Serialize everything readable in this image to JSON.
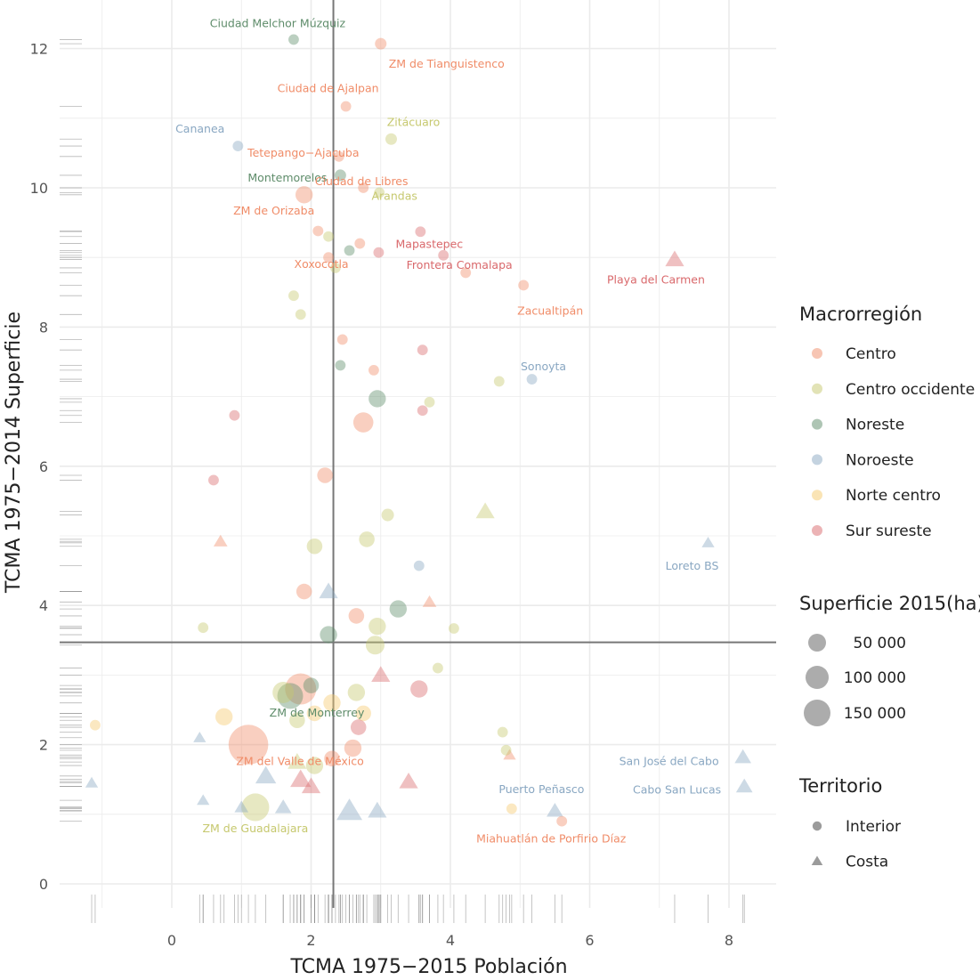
{
  "chart_data": {
    "type": "scatter",
    "xlabel": "TCMA 1975−2015 Población",
    "ylabel": "TCMA 1975−2014 Superficie",
    "xlim": [
      -1.6,
      8.7
    ],
    "ylim": [
      -0.15,
      12.45
    ],
    "x_ticks": [
      0,
      2,
      4,
      6,
      8
    ],
    "y_ticks": [
      0,
      2,
      4,
      6,
      8,
      10,
      12
    ],
    "grid": true,
    "reference_lines": {
      "x": 2.32,
      "y": 3.47
    },
    "legend_placement": "right",
    "colors": {
      "Centro": "#f08c68",
      "Centro occidente": "#c6c86e",
      "Noreste": "#5e8c6a",
      "Noroeste": "#89a7c2",
      "Norte centro": "#f5c96b",
      "Sur sureste": "#d9686b"
    },
    "legend_color": {
      "title": "Macrorregión",
      "items": [
        "Centro",
        "Centro occidente",
        "Noreste",
        "Noroeste",
        "Norte centro",
        "Sur sureste"
      ]
    },
    "legend_size": {
      "title": "Superficie 2015(ha)",
      "items": [
        {
          "label": "50 000",
          "value": 50000
        },
        {
          "label": "100 000",
          "value": 100000
        },
        {
          "label": "150 000",
          "value": 150000
        }
      ]
    },
    "legend_shape": {
      "title": "Territorio",
      "items": [
        {
          "label": "Interior",
          "shape": "circle"
        },
        {
          "label": "Costa",
          "shape": "triangle"
        }
      ]
    },
    "labeled_points": [
      {
        "name": "Ciudad Melchor Múzquiz",
        "x": 1.75,
        "y": 12.13,
        "region": "Noreste",
        "territory": "Interior",
        "size": 8000
      },
      {
        "name": "ZM de Tianguistenco",
        "x": 3.0,
        "y": 12.07,
        "region": "Centro",
        "territory": "Interior",
        "size": 10000
      },
      {
        "name": "Ciudad de Ajalpan",
        "x": 2.5,
        "y": 11.17,
        "region": "Centro",
        "territory": "Interior",
        "size": 8000
      },
      {
        "name": "Cananea",
        "x": 0.95,
        "y": 10.6,
        "region": "Noroeste",
        "territory": "Interior",
        "size": 8000
      },
      {
        "name": "Tetepango−Ajacuba",
        "x": 2.4,
        "y": 10.45,
        "region": "Centro",
        "territory": "Interior",
        "size": 8000
      },
      {
        "name": "Zitácuaro",
        "x": 3.15,
        "y": 10.7,
        "region": "Centro occidente",
        "territory": "Interior",
        "size": 10000
      },
      {
        "name": "Montemorelos",
        "x": 2.42,
        "y": 10.18,
        "region": "Noreste",
        "territory": "Interior",
        "size": 10000
      },
      {
        "name": "Arandas",
        "x": 2.98,
        "y": 9.93,
        "region": "Centro occidente",
        "territory": "Interior",
        "size": 8000
      },
      {
        "name": "ZM de Orizaba",
        "x": 1.9,
        "y": 9.9,
        "region": "Centro",
        "territory": "Interior",
        "size": 25000
      },
      {
        "name": "Ciudad de Libres",
        "x": 2.75,
        "y": 10.0,
        "region": "Centro",
        "territory": "Interior",
        "size": 8000
      },
      {
        "name": "Mapastepec",
        "x": 3.57,
        "y": 9.37,
        "region": "Sur sureste",
        "territory": "Interior",
        "size": 8000
      },
      {
        "name": "Xoxocotla",
        "x": 2.25,
        "y": 9.0,
        "region": "Centro",
        "territory": "Interior",
        "size": 8000
      },
      {
        "name": "Frontera Comalapa",
        "x": 3.9,
        "y": 9.03,
        "region": "Sur sureste",
        "territory": "Interior",
        "size": 8000
      },
      {
        "name": "Playa del Carmen",
        "x": 7.22,
        "y": 8.97,
        "region": "Sur sureste",
        "territory": "Costa",
        "size": 20000
      },
      {
        "name": "Zacualtipán",
        "x": 5.05,
        "y": 8.6,
        "region": "Centro",
        "territory": "Interior",
        "size": 8000
      },
      {
        "name": "Sonoyta",
        "x": 5.17,
        "y": 7.25,
        "region": "Noroeste",
        "territory": "Interior",
        "size": 8000
      },
      {
        "name": "Loreto BS",
        "x": 7.7,
        "y": 4.9,
        "region": "Noroeste",
        "territory": "Costa",
        "size": 8000
      },
      {
        "name": "ZM de Monterrey",
        "x": 1.7,
        "y": 2.7,
        "region": "Noreste",
        "territory": "Interior",
        "size": 60000
      },
      {
        "name": "San José del Cabo",
        "x": 8.2,
        "y": 1.82,
        "region": "Noroeste",
        "territory": "Costa",
        "size": 15000
      },
      {
        "name": "ZM del Valle de México",
        "x": 1.1,
        "y": 2.0,
        "region": "Centro",
        "territory": "Interior",
        "size": 150000
      },
      {
        "name": "Cabo San Lucas",
        "x": 8.22,
        "y": 1.4,
        "region": "Noroeste",
        "territory": "Costa",
        "size": 15000
      },
      {
        "name": "Puerto Peñasco",
        "x": 5.5,
        "y": 1.05,
        "region": "Noroeste",
        "territory": "Costa",
        "size": 15000
      },
      {
        "name": "ZM de Guadalajara",
        "x": 1.2,
        "y": 1.1,
        "region": "Centro occidente",
        "territory": "Interior",
        "size": 70000
      },
      {
        "name": "Miahuatlán de Porfirio Díaz",
        "x": 5.6,
        "y": 0.9,
        "region": "Centro",
        "territory": "Interior",
        "size": 8000
      }
    ],
    "points": [
      {
        "x": 4.5,
        "y": 5.35,
        "region": "Centro occidente",
        "territory": "Costa",
        "size": 20000
      },
      {
        "x": 4.7,
        "y": 7.22,
        "region": "Centro occidente",
        "territory": "Interior",
        "size": 8000
      },
      {
        "x": 2.95,
        "y": 6.97,
        "region": "Noreste",
        "territory": "Interior",
        "size": 25000
      },
      {
        "x": 2.75,
        "y": 6.63,
        "region": "Centro",
        "territory": "Interior",
        "size": 35000
      },
      {
        "x": 2.2,
        "y": 5.87,
        "region": "Centro",
        "territory": "Interior",
        "size": 20000
      },
      {
        "x": 0.6,
        "y": 5.8,
        "region": "Sur sureste",
        "territory": "Interior",
        "size": 8000
      },
      {
        "x": 3.1,
        "y": 5.3,
        "region": "Centro occidente",
        "territory": "Interior",
        "size": 12000
      },
      {
        "x": 2.8,
        "y": 4.95,
        "region": "Centro occidente",
        "territory": "Interior",
        "size": 20000
      },
      {
        "x": 2.05,
        "y": 4.85,
        "region": "Centro occidente",
        "territory": "Interior",
        "size": 20000
      },
      {
        "x": 0.7,
        "y": 4.92,
        "region": "Centro",
        "territory": "Costa",
        "size": 10000
      },
      {
        "x": 3.55,
        "y": 4.57,
        "region": "Noroeste",
        "territory": "Interior",
        "size": 8000
      },
      {
        "x": 3.25,
        "y": 3.95,
        "region": "Noreste",
        "territory": "Interior",
        "size": 25000
      },
      {
        "x": 2.25,
        "y": 3.58,
        "region": "Noreste",
        "territory": "Interior",
        "size": 25000
      },
      {
        "x": 1.9,
        "y": 4.2,
        "region": "Centro",
        "territory": "Interior",
        "size": 20000
      },
      {
        "x": 2.65,
        "y": 3.85,
        "region": "Centro",
        "territory": "Interior",
        "size": 20000
      },
      {
        "x": 2.95,
        "y": 3.7,
        "region": "Centro occidente",
        "territory": "Interior",
        "size": 25000
      },
      {
        "x": 3.7,
        "y": 4.05,
        "region": "Centro",
        "territory": "Costa",
        "size": 10000
      },
      {
        "x": 4.05,
        "y": 3.67,
        "region": "Centro occidente",
        "territory": "Interior",
        "size": 8000
      },
      {
        "x": 2.25,
        "y": 4.2,
        "region": "Noroeste",
        "territory": "Costa",
        "size": 20000
      },
      {
        "x": 0.45,
        "y": 3.68,
        "region": "Centro occidente",
        "territory": "Interior",
        "size": 8000
      },
      {
        "x": 2.92,
        "y": 3.43,
        "region": "Centro occidente",
        "territory": "Interior",
        "size": 30000
      },
      {
        "x": 1.85,
        "y": 2.8,
        "region": "Centro",
        "territory": "Interior",
        "size": 90000
      },
      {
        "x": 1.6,
        "y": 2.75,
        "region": "Centro occidente",
        "territory": "Interior",
        "size": 40000
      },
      {
        "x": 2.65,
        "y": 2.75,
        "region": "Centro occidente",
        "territory": "Interior",
        "size": 25000
      },
      {
        "x": 2.0,
        "y": 2.85,
        "region": "Noreste",
        "territory": "Interior",
        "size": 20000
      },
      {
        "x": 3.55,
        "y": 2.8,
        "region": "Sur sureste",
        "territory": "Interior",
        "size": 25000
      },
      {
        "x": 3.0,
        "y": 3.0,
        "region": "Sur sureste",
        "territory": "Costa",
        "size": 20000
      },
      {
        "x": 0.75,
        "y": 2.4,
        "region": "Norte centro",
        "territory": "Interior",
        "size": 25000
      },
      {
        "x": 2.05,
        "y": 2.45,
        "region": "Norte centro",
        "territory": "Interior",
        "size": 20000
      },
      {
        "x": 2.3,
        "y": 2.6,
        "region": "Norte centro",
        "territory": "Interior",
        "size": 25000
      },
      {
        "x": 2.75,
        "y": 2.45,
        "region": "Norte centro",
        "territory": "Interior",
        "size": 20000
      },
      {
        "x": 1.8,
        "y": 2.35,
        "region": "Centro occidente",
        "territory": "Interior",
        "size": 20000
      },
      {
        "x": 2.68,
        "y": 2.25,
        "region": "Sur sureste",
        "territory": "Interior",
        "size": 20000
      },
      {
        "x": 2.6,
        "y": 1.95,
        "region": "Centro",
        "territory": "Interior",
        "size": 25000
      },
      {
        "x": 2.05,
        "y": 1.7,
        "region": "Centro occidente",
        "territory": "Interior",
        "size": 25000
      },
      {
        "x": 2.3,
        "y": 1.8,
        "region": "Centro",
        "territory": "Interior",
        "size": 20000
      },
      {
        "x": 1.8,
        "y": 1.75,
        "region": "Centro occidente",
        "territory": "Costa",
        "size": 20000
      },
      {
        "x": 1.35,
        "y": 1.55,
        "region": "Noroeste",
        "territory": "Costa",
        "size": 25000
      },
      {
        "x": 1.85,
        "y": 1.5,
        "region": "Sur sureste",
        "territory": "Costa",
        "size": 25000
      },
      {
        "x": 2.0,
        "y": 1.4,
        "region": "Sur sureste",
        "territory": "Costa",
        "size": 20000
      },
      {
        "x": 3.4,
        "y": 1.47,
        "region": "Sur sureste",
        "territory": "Costa",
        "size": 20000
      },
      {
        "x": 2.55,
        "y": 1.05,
        "region": "Noroeste",
        "territory": "Costa",
        "size": 40000
      },
      {
        "x": 2.95,
        "y": 1.05,
        "region": "Noroeste",
        "territory": "Costa",
        "size": 20000
      },
      {
        "x": 1.6,
        "y": 1.1,
        "region": "Noroeste",
        "territory": "Costa",
        "size": 15000
      },
      {
        "x": 1.0,
        "y": 1.1,
        "region": "Noroeste",
        "territory": "Costa",
        "size": 10000
      },
      {
        "x": 0.45,
        "y": 1.2,
        "region": "Noroeste",
        "territory": "Costa",
        "size": 8000
      },
      {
        "x": -1.15,
        "y": 1.45,
        "region": "Noroeste",
        "territory": "Costa",
        "size": 8000
      },
      {
        "x": 0.4,
        "y": 2.1,
        "region": "Noroeste",
        "territory": "Costa",
        "size": 8000
      },
      {
        "x": 4.85,
        "y": 1.85,
        "region": "Centro",
        "territory": "Costa",
        "size": 8000
      },
      {
        "x": 4.8,
        "y": 1.92,
        "region": "Centro occidente",
        "territory": "Interior",
        "size": 8000
      },
      {
        "x": 4.75,
        "y": 2.18,
        "region": "Centro occidente",
        "territory": "Interior",
        "size": 8000
      },
      {
        "x": 4.88,
        "y": 1.08,
        "region": "Norte centro",
        "territory": "Interior",
        "size": 8000
      },
      {
        "x": -1.1,
        "y": 2.28,
        "region": "Norte centro",
        "territory": "Interior",
        "size": 8000
      },
      {
        "x": 3.82,
        "y": 3.1,
        "region": "Centro occidente",
        "territory": "Interior",
        "size": 8000
      },
      {
        "x": 3.6,
        "y": 7.67,
        "region": "Sur sureste",
        "territory": "Interior",
        "size": 8000
      },
      {
        "x": 3.6,
        "y": 6.8,
        "region": "Sur sureste",
        "territory": "Interior",
        "size": 8000
      },
      {
        "x": 3.7,
        "y": 6.92,
        "region": "Centro occidente",
        "territory": "Interior",
        "size": 8000
      },
      {
        "x": 0.9,
        "y": 6.73,
        "region": "Sur sureste",
        "territory": "Interior",
        "size": 8000
      },
      {
        "x": 2.45,
        "y": 7.82,
        "region": "Centro",
        "territory": "Interior",
        "size": 8000
      },
      {
        "x": 2.42,
        "y": 7.45,
        "region": "Noreste",
        "territory": "Interior",
        "size": 8000
      },
      {
        "x": 2.9,
        "y": 7.38,
        "region": "Centro",
        "territory": "Interior",
        "size": 8000
      },
      {
        "x": 1.75,
        "y": 8.45,
        "region": "Centro occidente",
        "territory": "Interior",
        "size": 8000
      },
      {
        "x": 1.85,
        "y": 8.18,
        "region": "Centro occidente",
        "territory": "Interior",
        "size": 8000
      },
      {
        "x": 2.35,
        "y": 8.85,
        "region": "Centro occidente",
        "territory": "Interior",
        "size": 8000
      },
      {
        "x": 2.55,
        "y": 9.1,
        "region": "Noreste",
        "territory": "Interior",
        "size": 8000
      },
      {
        "x": 2.97,
        "y": 9.07,
        "region": "Sur sureste",
        "territory": "Interior",
        "size": 8000
      },
      {
        "x": 2.7,
        "y": 9.2,
        "region": "Centro",
        "territory": "Interior",
        "size": 8000
      },
      {
        "x": 2.1,
        "y": 9.38,
        "region": "Centro",
        "territory": "Interior",
        "size": 8000
      },
      {
        "x": 2.25,
        "y": 9.3,
        "region": "Centro occidente",
        "territory": "Interior",
        "size": 8000
      },
      {
        "x": 4.22,
        "y": 8.78,
        "region": "Centro",
        "territory": "Interior",
        "size": 8000
      }
    ]
  }
}
